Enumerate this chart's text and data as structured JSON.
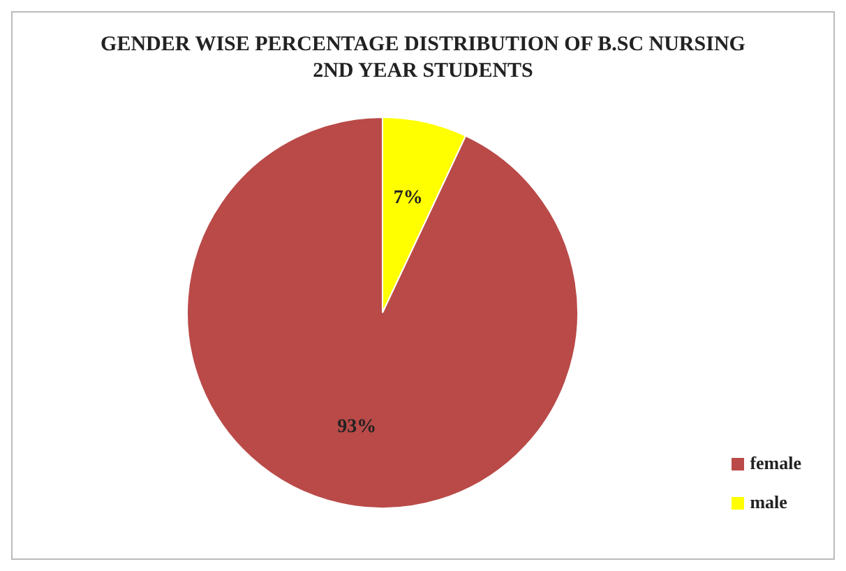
{
  "chart_data": {
    "type": "pie",
    "title": "GENDER WISE PERCENTAGE DISTRIBUTION OF B.SC NURSING 2ND YEAR STUDENTS",
    "categories": [
      "male",
      "female"
    ],
    "values": [
      7,
      93
    ],
    "colors": [
      "#ffff00",
      "#b94a48"
    ],
    "value_labels": [
      "7%",
      "93%"
    ],
    "legend": "bottom right"
  }
}
